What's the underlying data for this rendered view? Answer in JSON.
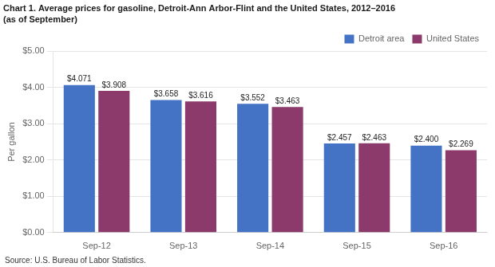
{
  "chart_data": {
    "type": "bar",
    "title": "Chart 1. Average prices for gasoline, Detroit-Ann Arbor-Flint and the United States, 2012–2016",
    "subtitle": "(as of September)",
    "ylabel": "Per gallon",
    "annotations": [
      "Source: U.S. Bureau of Labor Statistics."
    ],
    "categories": [
      "Sep-12",
      "Sep-13",
      "Sep-14",
      "Sep-15",
      "Sep-16"
    ],
    "series": [
      {
        "name": "Detroit area",
        "color": "#4472C4",
        "values": [
          4.071,
          3.658,
          3.552,
          2.457,
          2.4
        ],
        "value_labels": [
          "$4.071",
          "$3.658",
          "$3.552",
          "$2.457",
          "$2.400"
        ]
      },
      {
        "name": "United States",
        "color": "#8B3A6B",
        "values": [
          3.908,
          3.616,
          3.463,
          2.463,
          2.269
        ],
        "value_labels": [
          "$3.908",
          "$3.616",
          "$3.463",
          "$2.463",
          "$2.269"
        ]
      }
    ],
    "ylim": [
      0,
      5.0
    ],
    "yticks": [
      {
        "value": 0.0,
        "label": "$0.00"
      },
      {
        "value": 1.0,
        "label": "$1.00"
      },
      {
        "value": 2.0,
        "label": "$2.00"
      },
      {
        "value": 3.0,
        "label": "$3.00"
      },
      {
        "value": 4.0,
        "label": "$4.00"
      },
      {
        "value": 5.0,
        "label": "$5.00"
      }
    ],
    "grid": true,
    "legend": "upper right",
    "data_labels": true
  }
}
